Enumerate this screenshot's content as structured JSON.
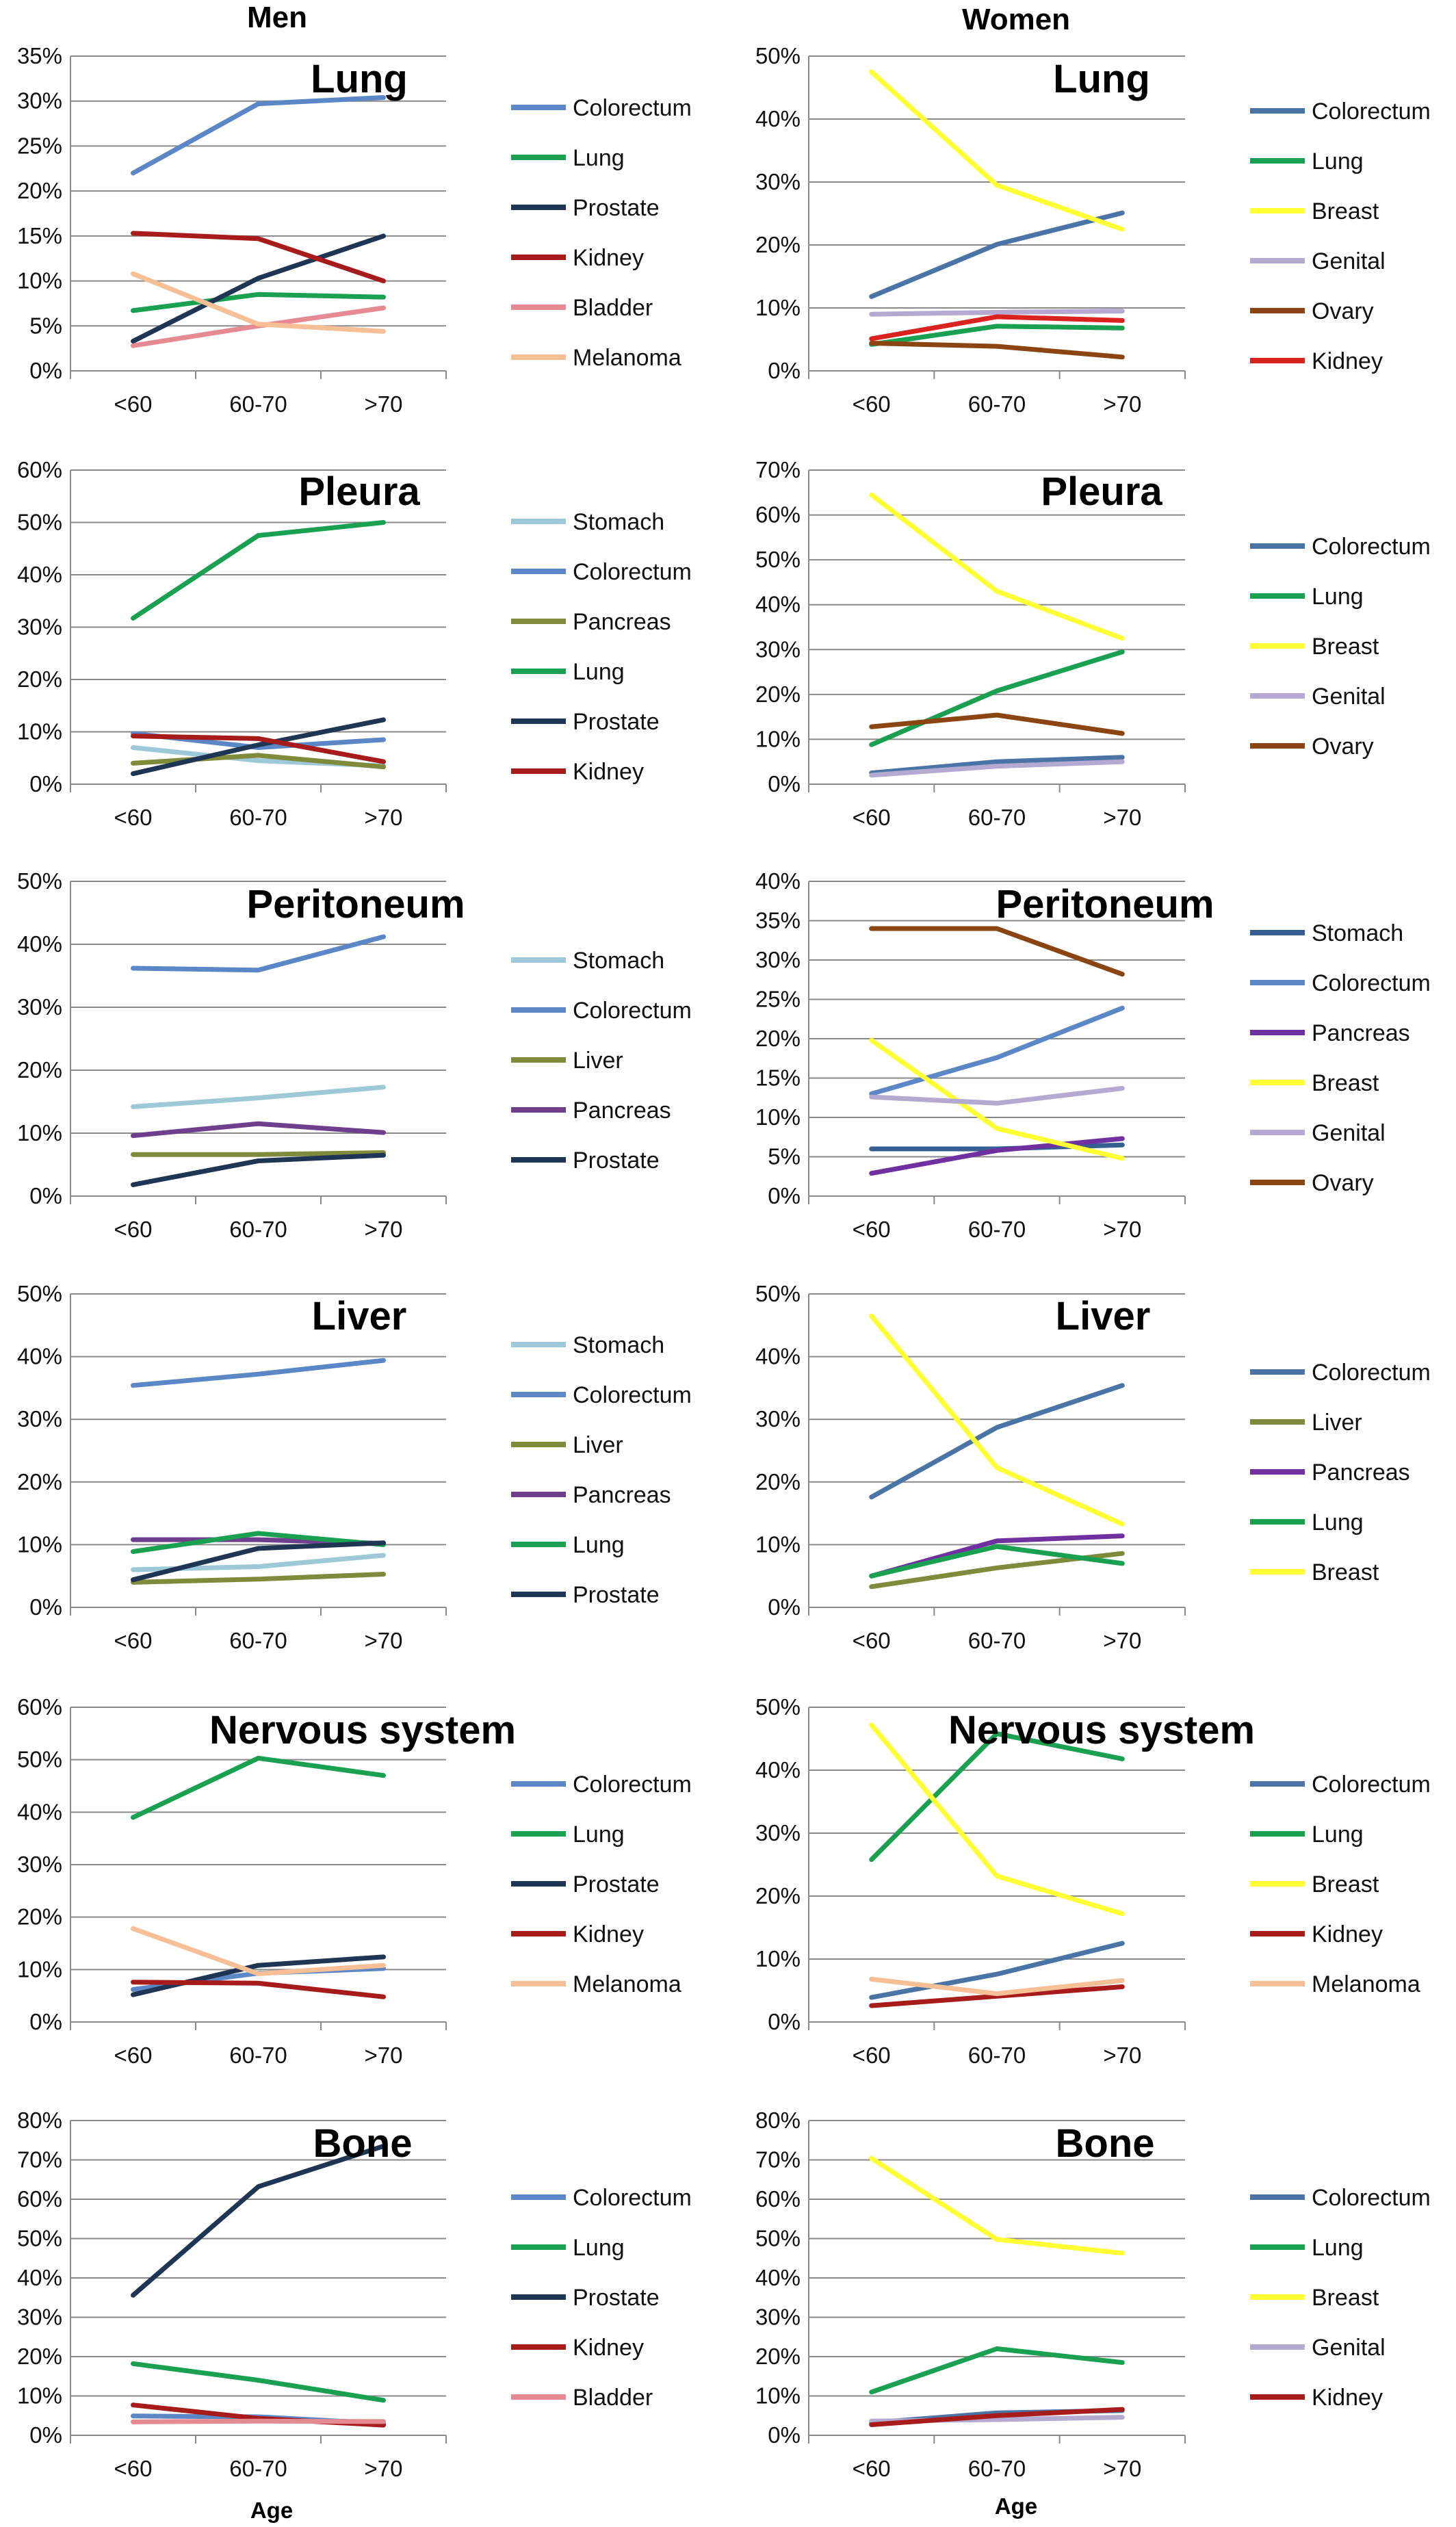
{
  "figure": {
    "columns": [
      "Men",
      "Women"
    ],
    "xlabel": "Age"
  },
  "chart_data": [
    {
      "type": "line",
      "id": "men-lung",
      "column": "Men",
      "title": "Lung",
      "categories": [
        "<60",
        "60-70",
        ">70"
      ],
      "yticks": [
        "0%",
        "5%",
        "10%",
        "15%",
        "20%",
        "25%",
        "30%",
        "35%"
      ],
      "ylim": [
        0,
        35
      ],
      "xlabel": "",
      "ylabel": "",
      "grid": true,
      "legend": "right",
      "series": [
        {
          "name": "Colorectum",
          "color": "#5b87c6",
          "values": [
            22,
            29.7,
            30.4
          ]
        },
        {
          "name": "Lung",
          "color": "#1aa051",
          "values": [
            6.7,
            8.5,
            8.2
          ]
        },
        {
          "name": "Prostate",
          "color": "#1f3554",
          "values": [
            3.3,
            10.3,
            15
          ]
        },
        {
          "name": "Kidney",
          "color": "#a81b1b",
          "values": [
            15.3,
            14.7,
            10
          ]
        },
        {
          "name": "Bladder",
          "color": "#e58a92",
          "values": [
            2.8,
            5,
            7
          ]
        },
        {
          "name": "Melanoma",
          "color": "#f6bf95",
          "values": [
            10.8,
            5.2,
            4.4
          ]
        }
      ]
    },
    {
      "type": "line",
      "id": "women-lung",
      "column": "Women",
      "title": "Lung",
      "categories": [
        "<60",
        "60-70",
        ">70"
      ],
      "yticks": [
        "0%",
        "10%",
        "20%",
        "30%",
        "40%",
        "50%"
      ],
      "ylim": [
        0,
        50
      ],
      "xlabel": "",
      "ylabel": "",
      "grid": true,
      "legend": "right",
      "series": [
        {
          "name": "Colorectum",
          "color": "#4b74a6",
          "values": [
            11.8,
            20.1,
            25.1
          ]
        },
        {
          "name": "Lung",
          "color": "#1aa051",
          "values": [
            4.2,
            7.1,
            6.8
          ]
        },
        {
          "name": "Breast",
          "color": "#ffff33",
          "values": [
            47.5,
            29.5,
            22.5
          ]
        },
        {
          "name": "Genital",
          "color": "#b4a9d0",
          "values": [
            9,
            9.3,
            9.5
          ]
        },
        {
          "name": "Ovary",
          "color": "#8b4513",
          "values": [
            4.4,
            3.9,
            2.2
          ]
        },
        {
          "name": "Kidney",
          "color": "#d9231f",
          "values": [
            5.1,
            8.6,
            8
          ]
        }
      ]
    },
    {
      "type": "line",
      "id": "men-pleura",
      "column": "Men",
      "title": "Pleura",
      "categories": [
        "<60",
        "60-70",
        ">70"
      ],
      "yticks": [
        "0%",
        "10%",
        "20%",
        "30%",
        "40%",
        "50%",
        "60%"
      ],
      "ylim": [
        0,
        60
      ],
      "xlabel": "",
      "ylabel": "",
      "grid": true,
      "legend": "right",
      "series": [
        {
          "name": "Stomach",
          "color": "#9dc8d8",
          "values": [
            7,
            4.5,
            3.5
          ]
        },
        {
          "name": "Colorectum",
          "color": "#5b87c6",
          "values": [
            9.7,
            7,
            8.5
          ]
        },
        {
          "name": "Pancreas",
          "color": "#7f8a3a",
          "values": [
            4,
            5.5,
            3.3
          ]
        },
        {
          "name": "Lung",
          "color": "#1aa051",
          "values": [
            31.7,
            47.5,
            50
          ]
        },
        {
          "name": "Prostate",
          "color": "#1f3554",
          "values": [
            2,
            7.5,
            12.3
          ]
        },
        {
          "name": "Kidney",
          "color": "#a81b1b",
          "values": [
            9.2,
            8.7,
            4.3
          ]
        }
      ]
    },
    {
      "type": "line",
      "id": "women-pleura",
      "column": "Women",
      "title": "Pleura",
      "categories": [
        "<60",
        "60-70",
        ">70"
      ],
      "yticks": [
        "0%",
        "10%",
        "20%",
        "30%",
        "40%",
        "50%",
        "60%",
        "70%"
      ],
      "ylim": [
        0,
        70
      ],
      "xlabel": "",
      "ylabel": "",
      "grid": true,
      "legend": "right",
      "series": [
        {
          "name": "Colorectum",
          "color": "#4b74a6",
          "values": [
            2.5,
            5,
            6
          ]
        },
        {
          "name": "Lung",
          "color": "#1aa051",
          "values": [
            8.8,
            20.8,
            29.5
          ]
        },
        {
          "name": "Breast",
          "color": "#ffff33",
          "values": [
            64.5,
            43,
            32.5
          ]
        },
        {
          "name": "Genital",
          "color": "#b4a9d0",
          "values": [
            2,
            4,
            5
          ]
        },
        {
          "name": "Ovary",
          "color": "#8b4513",
          "values": [
            12.8,
            15.4,
            11.3
          ]
        }
      ]
    },
    {
      "type": "line",
      "id": "men-peritoneum",
      "column": "Men",
      "title": "Peritoneum",
      "categories": [
        "<60",
        "60-70",
        ">70"
      ],
      "yticks": [
        "0%",
        "10%",
        "20%",
        "30%",
        "40%",
        "50%"
      ],
      "ylim": [
        0,
        50
      ],
      "xlabel": "",
      "ylabel": "",
      "grid": true,
      "legend": "right",
      "series": [
        {
          "name": "Stomach",
          "color": "#9dc8d8",
          "values": [
            14.2,
            15.6,
            17.3
          ]
        },
        {
          "name": "Colorectum",
          "color": "#5b87c6",
          "values": [
            36.2,
            35.9,
            41.2
          ]
        },
        {
          "name": "Liver",
          "color": "#7f8a3a",
          "values": [
            6.6,
            6.6,
            6.9
          ]
        },
        {
          "name": "Pancreas",
          "color": "#6f3f8e",
          "values": [
            9.6,
            11.5,
            10.1
          ]
        },
        {
          "name": "Prostate",
          "color": "#1f3554",
          "values": [
            1.8,
            5.6,
            6.5
          ]
        }
      ]
    },
    {
      "type": "line",
      "id": "women-peritoneum",
      "column": "Women",
      "title": "Peritoneum",
      "categories": [
        "<60",
        "60-70",
        ">70"
      ],
      "yticks": [
        "0%",
        "5%",
        "10%",
        "15%",
        "20%",
        "25%",
        "30%",
        "35%",
        "40%"
      ],
      "ylim": [
        0,
        40
      ],
      "xlabel": "",
      "ylabel": "",
      "grid": true,
      "legend": "right",
      "series": [
        {
          "name": "Stomach",
          "color": "#365f91",
          "values": [
            6,
            6,
            6.5
          ]
        },
        {
          "name": "Colorectum",
          "color": "#5b87c6",
          "values": [
            13,
            17.6,
            23.9
          ]
        },
        {
          "name": "Pancreas",
          "color": "#7030a0",
          "values": [
            2.9,
            5.8,
            7.3
          ]
        },
        {
          "name": "Breast",
          "color": "#ffff33",
          "values": [
            19.8,
            8.6,
            4.8
          ]
        },
        {
          "name": "Genital",
          "color": "#b4a9d0",
          "values": [
            12.6,
            11.8,
            13.7
          ]
        },
        {
          "name": "Ovary",
          "color": "#8b4513",
          "values": [
            34,
            34,
            28.2
          ]
        }
      ]
    },
    {
      "type": "line",
      "id": "men-liver",
      "column": "Men",
      "title": "Liver",
      "categories": [
        "<60",
        "60-70",
        ">70"
      ],
      "yticks": [
        "0%",
        "10%",
        "20%",
        "30%",
        "40%",
        "50%"
      ],
      "ylim": [
        0,
        50
      ],
      "xlabel": "",
      "ylabel": "",
      "grid": true,
      "legend": "right",
      "series": [
        {
          "name": "Stomach",
          "color": "#9dc8d8",
          "values": [
            6,
            6.5,
            8.3
          ]
        },
        {
          "name": "Colorectum",
          "color": "#5b87c6",
          "values": [
            35.4,
            37.2,
            39.4
          ]
        },
        {
          "name": "Liver",
          "color": "#7f8a3a",
          "values": [
            4,
            4.5,
            5.3
          ]
        },
        {
          "name": "Pancreas",
          "color": "#6f3f8e",
          "values": [
            10.8,
            10.8,
            10.2
          ]
        },
        {
          "name": "Lung",
          "color": "#1aa051",
          "values": [
            8.9,
            11.8,
            10
          ]
        },
        {
          "name": "Prostate",
          "color": "#1f3554",
          "values": [
            4.4,
            9.4,
            10.3
          ]
        }
      ]
    },
    {
      "type": "line",
      "id": "women-liver",
      "column": "Women",
      "title": "Liver",
      "categories": [
        "<60",
        "60-70",
        ">70"
      ],
      "yticks": [
        "0%",
        "10%",
        "20%",
        "30%",
        "40%",
        "50%"
      ],
      "ylim": [
        0,
        50
      ],
      "xlabel": "",
      "ylabel": "",
      "grid": true,
      "legend": "right",
      "series": [
        {
          "name": "Colorectum",
          "color": "#4b74a6",
          "values": [
            17.6,
            28.7,
            35.4
          ]
        },
        {
          "name": "Liver",
          "color": "#7f8a3a",
          "values": [
            3.3,
            6.3,
            8.6
          ]
        },
        {
          "name": "Pancreas",
          "color": "#7030a0",
          "values": [
            5,
            10.6,
            11.4
          ]
        },
        {
          "name": "Lung",
          "color": "#1aa051",
          "values": [
            5,
            9.7,
            7
          ]
        },
        {
          "name": "Breast",
          "color": "#ffff33",
          "values": [
            46.5,
            22.3,
            13.3
          ]
        }
      ]
    },
    {
      "type": "line",
      "id": "men-nervous",
      "column": "Men",
      "title": "Nervous system",
      "categories": [
        "<60",
        "60-70",
        ">70"
      ],
      "yticks": [
        "0%",
        "10%",
        "20%",
        "30%",
        "40%",
        "50%",
        "60%"
      ],
      "ylim": [
        0,
        60
      ],
      "xlabel": "",
      "ylabel": "",
      "grid": true,
      "legend": "right",
      "series": [
        {
          "name": "Colorectum",
          "color": "#5b87c6",
          "values": [
            6.2,
            9.3,
            10.2
          ]
        },
        {
          "name": "Lung",
          "color": "#1aa051",
          "values": [
            39,
            50.3,
            47
          ]
        },
        {
          "name": "Prostate",
          "color": "#1f3554",
          "values": [
            5.2,
            10.8,
            12.4
          ]
        },
        {
          "name": "Kidney",
          "color": "#a81b1b",
          "values": [
            7.6,
            7.4,
            4.8
          ]
        },
        {
          "name": "Melanoma",
          "color": "#f6bf95",
          "values": [
            17.8,
            9.2,
            10.8
          ]
        }
      ]
    },
    {
      "type": "line",
      "id": "women-nervous",
      "column": "Women",
      "title": "Nervous system",
      "categories": [
        "<60",
        "60-70",
        ">70"
      ],
      "yticks": [
        "0%",
        "10%",
        "20%",
        "30%",
        "40%",
        "50%"
      ],
      "ylim": [
        0,
        50
      ],
      "xlabel": "",
      "ylabel": "",
      "grid": true,
      "legend": "right",
      "series": [
        {
          "name": "Colorectum",
          "color": "#4b74a6",
          "values": [
            3.9,
            7.6,
            12.5
          ]
        },
        {
          "name": "Lung",
          "color": "#1aa051",
          "values": [
            25.8,
            45.8,
            41.8
          ]
        },
        {
          "name": "Breast",
          "color": "#ffff33",
          "values": [
            47.2,
            23.2,
            17.2
          ]
        },
        {
          "name": "Kidney",
          "color": "#a81b1b",
          "values": [
            2.6,
            4.1,
            5.6
          ]
        },
        {
          "name": "Melanoma",
          "color": "#f6bf95",
          "values": [
            6.8,
            4.5,
            6.6
          ]
        }
      ]
    },
    {
      "type": "line",
      "id": "men-bone",
      "column": "Men",
      "title": "Bone",
      "categories": [
        "<60",
        "60-70",
        ">70"
      ],
      "yticks": [
        "0%",
        "10%",
        "20%",
        "30%",
        "40%",
        "50%",
        "60%",
        "70%",
        "80%"
      ],
      "ylim": [
        0,
        80
      ],
      "xlabel": "Age",
      "ylabel": "",
      "grid": true,
      "legend": "right",
      "series": [
        {
          "name": "Colorectum",
          "color": "#5b87c6",
          "values": [
            4.9,
            4.7,
            3
          ]
        },
        {
          "name": "Lung",
          "color": "#1aa051",
          "values": [
            18.2,
            14,
            8.9
          ]
        },
        {
          "name": "Prostate",
          "color": "#1f3554",
          "values": [
            35.6,
            63.2,
            73.5
          ]
        },
        {
          "name": "Kidney",
          "color": "#a81b1b",
          "values": [
            7.7,
            4.3,
            2.6
          ]
        },
        {
          "name": "Bladder",
          "color": "#e58a92",
          "values": [
            3.4,
            3.6,
            3.5
          ]
        }
      ]
    },
    {
      "type": "line",
      "id": "women-bone",
      "column": "Women",
      "title": "Bone",
      "categories": [
        "<60",
        "60-70",
        ">70"
      ],
      "yticks": [
        "0%",
        "10%",
        "20%",
        "30%",
        "40%",
        "50%",
        "60%",
        "70%",
        "80%"
      ],
      "ylim": [
        0,
        80
      ],
      "xlabel": "Age",
      "ylabel": "",
      "grid": true,
      "legend": "right",
      "series": [
        {
          "name": "Colorectum",
          "color": "#4b74a6",
          "values": [
            3.2,
            5.7,
            6.3
          ]
        },
        {
          "name": "Lung",
          "color": "#1aa051",
          "values": [
            11,
            22,
            18.5
          ]
        },
        {
          "name": "Breast",
          "color": "#ffff33",
          "values": [
            70.4,
            49.8,
            46.3
          ]
        },
        {
          "name": "Genital",
          "color": "#b4a9d0",
          "values": [
            3.6,
            4,
            4.6
          ]
        },
        {
          "name": "Kidney",
          "color": "#a81b1b",
          "values": [
            2.7,
            5,
            6.6
          ]
        }
      ]
    }
  ]
}
